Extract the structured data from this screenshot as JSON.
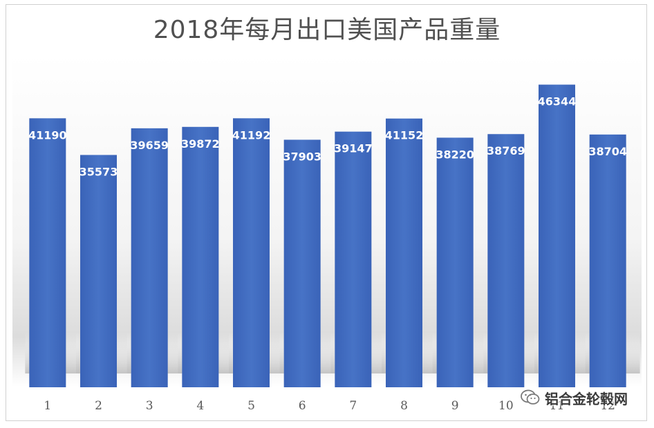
{
  "chart_data": {
    "type": "bar",
    "title": "2018年每月出口美国产品重量",
    "categories": [
      "1",
      "2",
      "3",
      "4",
      "5",
      "6",
      "7",
      "8",
      "9",
      "10",
      "11",
      "12"
    ],
    "values": [
      41190,
      35573,
      39659,
      39872,
      41192,
      37903,
      39147,
      41152,
      38220,
      38769,
      46344,
      38704
    ],
    "data_labels": [
      "41190",
      "35573",
      "39659",
      "39872",
      "41192",
      "37903",
      "39147",
      "41152",
      "38220",
      "38769",
      "46344",
      "38704"
    ],
    "xlabel": "",
    "ylabel": "",
    "ylim": [
      0,
      50000
    ],
    "grid": false,
    "legend": "none",
    "bar_color": "#3d68c0",
    "bar_color_light": "#4a76cc"
  },
  "watermark": {
    "text": "铝合金轮毂网",
    "icon": "wechat-icon"
  }
}
